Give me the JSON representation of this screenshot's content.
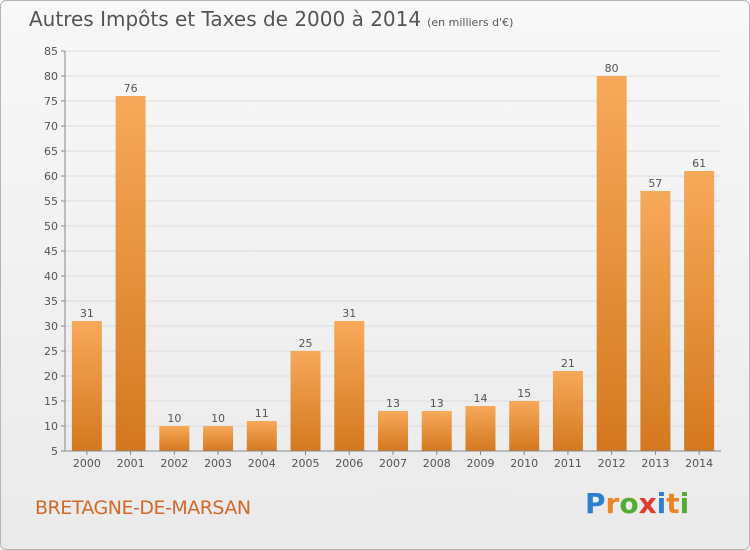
{
  "header": {
    "title": "Autres Impôts et Taxes de 2000 à 2014",
    "unit": "(en milliers d'€)"
  },
  "location": "BRETAGNE-DE-MARSAN",
  "logo": {
    "text": "Proxiti",
    "letter_colors": [
      "#2f7fd0",
      "#e8862c",
      "#55aa33",
      "#e23c2c",
      "#2f7fd0",
      "#e8862c",
      "#55aa33"
    ]
  },
  "colors": {
    "bar_top": "#f7a95a",
    "bar_bottom": "#d4781f",
    "grid": "#dddddd",
    "text": "#555555",
    "location": "#d06a2a"
  },
  "chart_data": {
    "type": "bar",
    "title": "Autres Impôts et Taxes de 2000 à 2014",
    "subtitle": "(en milliers d'€)",
    "xlabel": "",
    "ylabel": "",
    "categories": [
      "2000",
      "2001",
      "2002",
      "2003",
      "2004",
      "2005",
      "2006",
      "2007",
      "2008",
      "2009",
      "2010",
      "2011",
      "2012",
      "2013",
      "2014"
    ],
    "values": [
      31,
      76,
      10,
      10,
      11,
      25,
      31,
      13,
      13,
      14,
      15,
      21,
      80,
      57,
      61
    ],
    "data_labels": [
      "31",
      "76",
      "10",
      "10",
      "11",
      "25",
      "31",
      "13",
      "13",
      "14",
      "15",
      "21",
      "80",
      "57",
      "61"
    ],
    "ylim": [
      5,
      85
    ],
    "yticks": [
      5,
      10,
      15,
      20,
      25,
      30,
      35,
      40,
      45,
      50,
      55,
      60,
      65,
      70,
      75,
      80,
      85
    ],
    "grid": true,
    "legend": "none"
  }
}
